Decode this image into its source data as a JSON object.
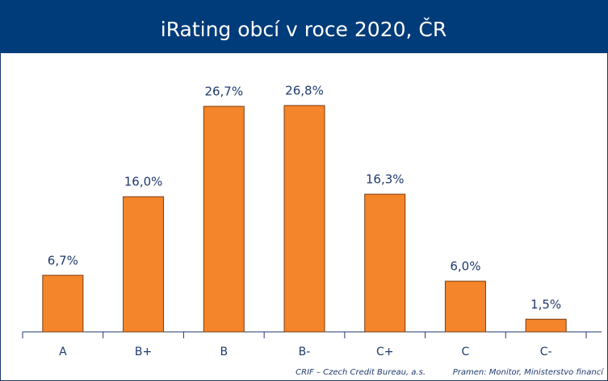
{
  "chart_data": {
    "type": "bar",
    "title": "iRating obcí v roce 2020, ČR",
    "categories": [
      "A",
      "B+",
      "B",
      "B-",
      "C+",
      "C",
      "C-"
    ],
    "values": [
      6.7,
      16.0,
      26.7,
      26.8,
      16.3,
      6.0,
      1.5
    ],
    "value_labels": [
      "6,7%",
      "16,0%",
      "26,7%",
      "26,8%",
      "16,3%",
      "6,0%",
      "1,5%"
    ],
    "color": "#f5852a",
    "notes": [
      "CRIF – Czech Credit Bureau, a.s.",
      "Pramen: Monitor, Ministerstvo financí"
    ]
  }
}
